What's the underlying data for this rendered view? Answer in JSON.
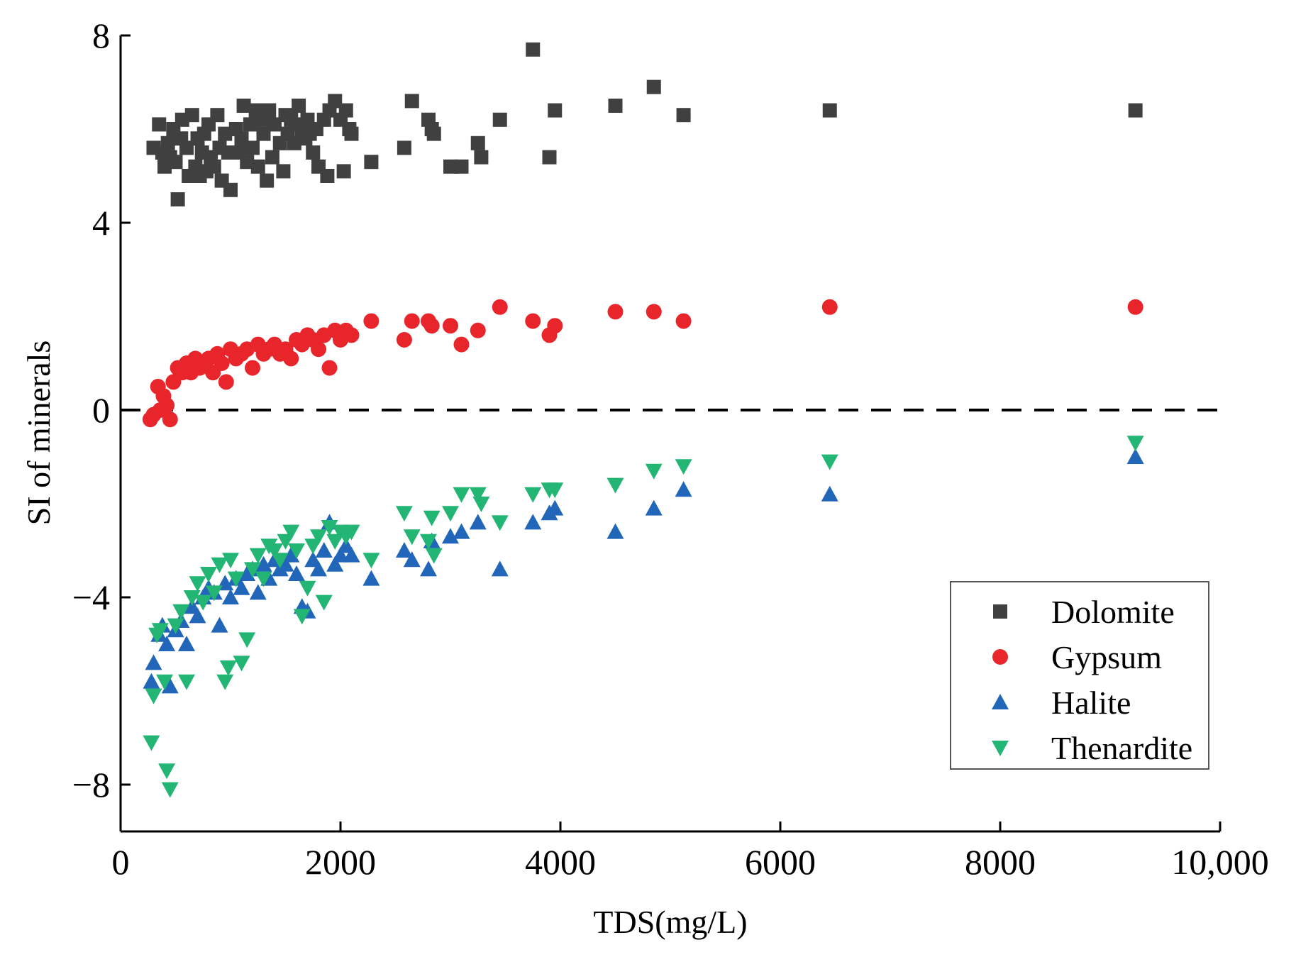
{
  "chart_data": {
    "type": "scatter",
    "xlabel": "TDS(mg/L)",
    "ylabel": "SI of minerals",
    "xlim": [
      0,
      10000
    ],
    "ylim": [
      -9,
      8
    ],
    "x_ticks": [
      0,
      2000,
      4000,
      6000,
      8000,
      10000
    ],
    "x_tick_labels": [
      "0",
      "2000",
      "4000",
      "6000",
      "8000",
      "10,000"
    ],
    "y_ticks": [
      -8,
      -4,
      0,
      4,
      8
    ],
    "y_tick_labels": [
      "−8",
      "−4",
      "0",
      "4",
      "8"
    ],
    "reference_line": {
      "y": 0,
      "style": "dashed"
    },
    "legend_position": "bottom-right",
    "series": [
      {
        "name": "Dolomite",
        "marker": "square",
        "color": "#404040",
        "x": [
          300,
          350,
          380,
          400,
          430,
          450,
          480,
          500,
          520,
          550,
          560,
          600,
          620,
          650,
          680,
          700,
          720,
          740,
          760,
          780,
          800,
          820,
          850,
          880,
          900,
          920,
          950,
          980,
          1000,
          1050,
          1080,
          1100,
          1120,
          1150,
          1180,
          1200,
          1230,
          1250,
          1280,
          1300,
          1330,
          1350,
          1380,
          1400,
          1450,
          1480,
          1500,
          1520,
          1550,
          1580,
          1600,
          1620,
          1650,
          1680,
          1700,
          1720,
          1750,
          1780,
          1800,
          1850,
          1880,
          1900,
          1950,
          2000,
          2030,
          2050,
          2080,
          2100,
          2280,
          2580,
          2650,
          2800,
          2830,
          2850,
          3000,
          3100,
          3250,
          3280,
          3450,
          3750,
          3900,
          3950,
          4500,
          4850,
          5120,
          6450,
          9230
        ],
        "y": [
          5.6,
          6.1,
          5.5,
          5.2,
          5.7,
          5.4,
          6.0,
          5.3,
          4.5,
          5.8,
          6.2,
          5.6,
          5.0,
          6.3,
          5.2,
          5.8,
          5.0,
          5.5,
          5.9,
          5.1,
          6.1,
          5.4,
          5.2,
          6.3,
          5.6,
          4.9,
          5.9,
          5.5,
          4.7,
          6.0,
          5.5,
          5.8,
          6.5,
          5.3,
          6.1,
          5.6,
          6.4,
          5.2,
          6.2,
          5.9,
          4.9,
          6.4,
          5.4,
          6.1,
          5.7,
          5.1,
          6.3,
          5.9,
          6.2,
          5.7,
          6.1,
          6.5,
          6.0,
          5.8,
          6.2,
          5.9,
          5.5,
          6.0,
          5.2,
          6.2,
          5.0,
          6.4,
          6.6,
          6.2,
          5.1,
          6.4,
          6.0,
          5.9,
          5.3,
          5.6,
          6.6,
          6.2,
          6.0,
          5.9,
          5.2,
          5.2,
          5.7,
          5.4,
          6.2,
          7.7,
          5.4,
          6.4,
          6.5,
          6.9,
          6.3,
          6.4,
          6.4
        ]
      },
      {
        "name": "Gypsum",
        "marker": "circle",
        "color": "#e8252a",
        "x": [
          270,
          300,
          340,
          360,
          390,
          420,
          450,
          480,
          520,
          560,
          600,
          640,
          680,
          720,
          760,
          800,
          840,
          880,
          920,
          960,
          1000,
          1050,
          1100,
          1150,
          1200,
          1250,
          1300,
          1350,
          1400,
          1450,
          1500,
          1550,
          1600,
          1650,
          1700,
          1750,
          1800,
          1850,
          1900,
          1950,
          2000,
          2050,
          2100,
          2280,
          2580,
          2650,
          2800,
          2830,
          3000,
          3100,
          3250,
          3450,
          3750,
          3900,
          3950,
          4500,
          4850,
          5120,
          6450,
          9230
        ],
        "y": [
          -0.2,
          -0.1,
          0.5,
          0.0,
          0.3,
          0.1,
          -0.2,
          0.6,
          0.9,
          0.8,
          1.0,
          0.8,
          1.1,
          0.9,
          1.0,
          1.1,
          0.8,
          1.2,
          1.0,
          0.6,
          1.3,
          1.1,
          1.2,
          1.3,
          0.9,
          1.4,
          1.2,
          1.3,
          1.4,
          1.2,
          1.3,
          1.1,
          1.5,
          1.4,
          1.6,
          1.5,
          1.3,
          1.6,
          0.9,
          1.7,
          1.5,
          1.7,
          1.6,
          1.9,
          1.5,
          1.9,
          1.9,
          1.8,
          1.8,
          1.4,
          1.7,
          2.2,
          1.9,
          1.6,
          1.8,
          2.1,
          2.1,
          1.9,
          2.2,
          2.2
        ]
      },
      {
        "name": "Halite",
        "marker": "triangle-up",
        "color": "#2166b9",
        "x": [
          280,
          300,
          350,
          380,
          420,
          450,
          500,
          550,
          600,
          650,
          700,
          750,
          800,
          850,
          900,
          950,
          1000,
          1050,
          1100,
          1150,
          1200,
          1250,
          1300,
          1350,
          1400,
          1450,
          1500,
          1550,
          1600,
          1650,
          1700,
          1750,
          1800,
          1850,
          1900,
          1950,
          2000,
          2050,
          2100,
          2280,
          2580,
          2650,
          2800,
          2830,
          3000,
          3100,
          3250,
          3450,
          3750,
          3900,
          3950,
          4500,
          4850,
          5120,
          6450,
          9230
        ],
        "y": [
          -5.8,
          -5.4,
          -4.8,
          -4.6,
          -5.0,
          -5.9,
          -4.7,
          -4.5,
          -5.0,
          -4.2,
          -4.4,
          -4.0,
          -3.8,
          -3.9,
          -4.6,
          -3.7,
          -4.0,
          -3.6,
          -3.8,
          -3.5,
          -3.4,
          -3.9,
          -3.3,
          -3.6,
          -3.2,
          -3.4,
          -3.3,
          -3.1,
          -3.5,
          -4.2,
          -4.3,
          -3.2,
          -3.4,
          -3.0,
          -2.4,
          -3.3,
          -3.1,
          -2.9,
          -3.1,
          -3.6,
          -3.0,
          -3.2,
          -3.4,
          -2.8,
          -2.7,
          -2.6,
          -2.4,
          -3.4,
          -2.4,
          -2.2,
          -2.1,
          -2.6,
          -2.1,
          -1.7,
          -1.8,
          -1.0
        ]
      },
      {
        "name": "Thenardite",
        "marker": "triangle-down",
        "color": "#22b573",
        "x": [
          280,
          300,
          330,
          360,
          400,
          420,
          450,
          500,
          550,
          600,
          650,
          700,
          750,
          800,
          850,
          900,
          950,
          980,
          1000,
          1050,
          1100,
          1150,
          1200,
          1250,
          1300,
          1350,
          1400,
          1450,
          1500,
          1550,
          1600,
          1650,
          1700,
          1750,
          1800,
          1850,
          1900,
          1950,
          2000,
          2050,
          2100,
          2280,
          2580,
          2650,
          2800,
          2830,
          2850,
          3000,
          3100,
          3250,
          3280,
          3450,
          3750,
          3900,
          3950,
          4500,
          4850,
          5120,
          6450,
          9230
        ],
        "y": [
          -7.1,
          -6.1,
          -4.8,
          -4.7,
          -5.8,
          -7.7,
          -8.1,
          -4.6,
          -4.3,
          -5.8,
          -4.0,
          -3.7,
          -4.1,
          -3.5,
          -3.9,
          -3.3,
          -5.8,
          -5.5,
          -3.2,
          -3.6,
          -5.4,
          -4.9,
          -3.4,
          -3.1,
          -3.6,
          -2.9,
          -3.0,
          -3.2,
          -2.8,
          -2.6,
          -3.0,
          -4.4,
          -3.8,
          -2.9,
          -2.7,
          -4.1,
          -2.5,
          -2.8,
          -2.6,
          -2.7,
          -2.6,
          -3.2,
          -2.2,
          -2.7,
          -2.8,
          -2.3,
          -3.1,
          -2.2,
          -1.8,
          -1.8,
          -2.0,
          -2.4,
          -1.8,
          -1.7,
          -1.7,
          -1.6,
          -1.3,
          -1.2,
          -1.1,
          -0.7
        ]
      }
    ]
  }
}
